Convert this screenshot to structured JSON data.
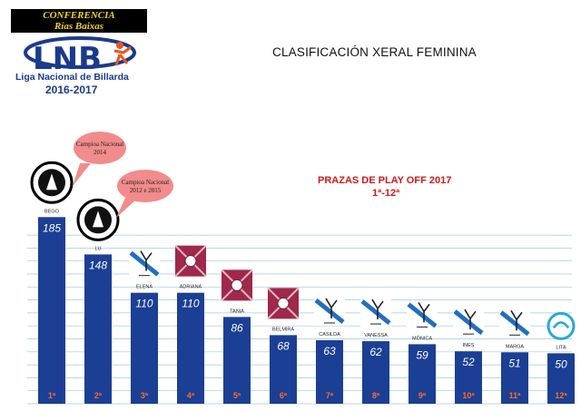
{
  "logo": {
    "conference_line1": "CONFERENCIA",
    "conference_line2": "Rías Baixas",
    "brand": "LNB",
    "subtitle": "Liga Nacional de Billarda",
    "season": "2016-2017"
  },
  "main_title": "CLASIFICACIÓN XERAL FEMININA",
  "playoff": {
    "title": "PRAZAS DE PLAY OFF 2017",
    "subtitle": "1ª-12ª"
  },
  "callouts": [
    {
      "line1": "Campioa Nacional",
      "line2": "2014"
    },
    {
      "line1": "Campioa Nacional",
      "line2": "2012 e 2015"
    }
  ],
  "colors": {
    "bar": "#1b3f94",
    "value_text": "#ffffff",
    "rank_text": "#ff6a2a",
    "grid": "#9ec8e6",
    "callout": "#f28b8b",
    "playoff_text": "#d01818",
    "club_red": "#a0284a"
  },
  "chart_data": {
    "type": "bar",
    "title": "CLASIFICACIÓN XERAL FEMININA",
    "xlabel": "",
    "ylabel": "",
    "ylim": [
      0,
      200
    ],
    "grid": true,
    "categories": [
      "BEGO",
      "LU",
      "ELENA",
      "ADRIANA",
      "TANIA",
      "BELMIRA",
      "CASILDA",
      "VANESSA",
      "MÓNICA",
      "INES",
      "MARGA",
      "LITA"
    ],
    "values": [
      185,
      148,
      110,
      110,
      86,
      68,
      63,
      62,
      59,
      52,
      51,
      50
    ],
    "ranks": [
      "1ª",
      "2ª",
      "3ª",
      "4ª",
      "5ª",
      "6ª",
      "7ª",
      "8ª",
      "9ª",
      "10ª",
      "11ª",
      "12ª"
    ],
    "club_icons": [
      "correduras-badge-icon",
      "correduras-badge-icon",
      "billarda-club-icon",
      "red-flag-club-icon",
      "red-flag-club-icon",
      "red-flag-club-icon",
      "billarda-club-icon",
      "billarda-club-icon",
      "billarda-club-icon",
      "billarda-club-icon",
      "billarda-club-icon",
      "blue-swirl-club-icon"
    ]
  }
}
